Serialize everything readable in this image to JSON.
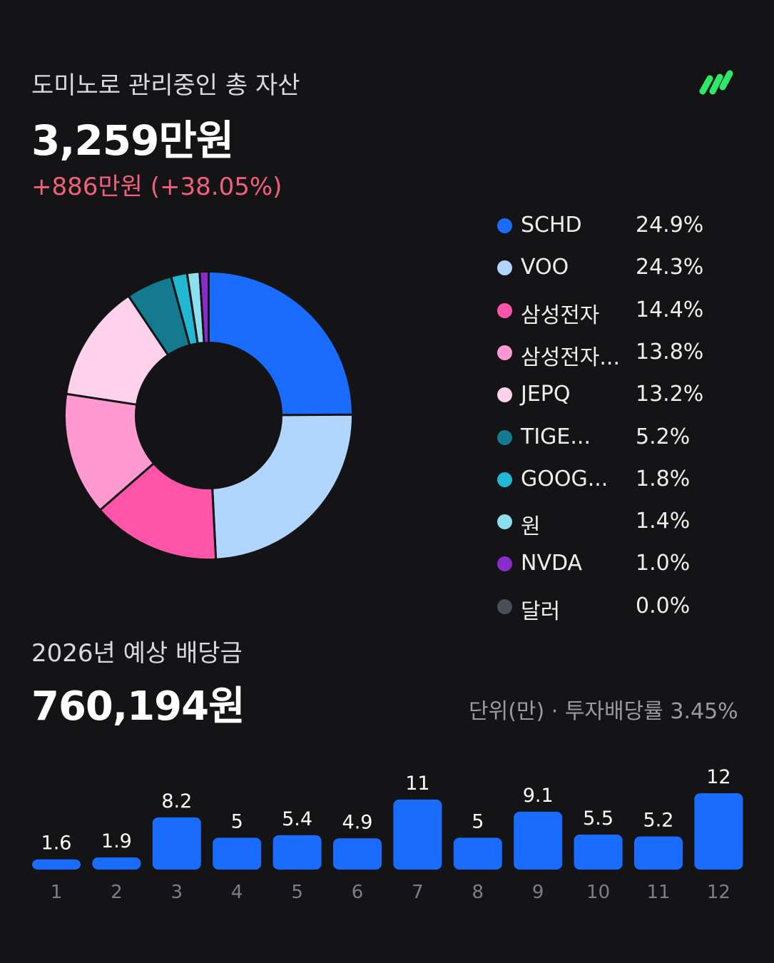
{
  "header": {
    "title": "도미노로 관리중인 총 자산",
    "total": "3,259만원",
    "change": "+886만원 (+38.05%)"
  },
  "logo": {
    "icon": "domino-stripes-logo",
    "color": "#2ee86a"
  },
  "legend": [
    {
      "name": "SCHD",
      "pct": "24.9%",
      "color": "#1a6cff"
    },
    {
      "name": "VOO",
      "pct": "24.3%",
      "color": "#b0d6ff"
    },
    {
      "name": "삼성전자",
      "pct": "14.4%",
      "color": "#ff55a8"
    },
    {
      "name": "삼성전자...",
      "pct": "13.8%",
      "color": "#ff99d2"
    },
    {
      "name": "JEPQ",
      "pct": "13.2%",
      "color": "#ffd2ec"
    },
    {
      "name": "TIGE...",
      "pct": "5.2%",
      "color": "#147a8f"
    },
    {
      "name": "GOOG...",
      "pct": "1.8%",
      "color": "#22b8d4"
    },
    {
      "name": "원",
      "pct": "1.4%",
      "color": "#8ce0ee"
    },
    {
      "name": "NVDA",
      "pct": "1.0%",
      "color": "#8a2cc9"
    },
    {
      "name": "달러",
      "pct": "0.0%",
      "color": "#4a4f57"
    }
  ],
  "dividend": {
    "title": "2026년 예상 배당금",
    "total": "760,194원",
    "subtitle": "단위(만) · 투자배당률 3.45%"
  },
  "chart_data": [
    {
      "type": "pie",
      "labels": [
        "SCHD",
        "VOO",
        "삼성전자",
        "삼성전자...",
        "JEPQ",
        "TIGE...",
        "GOOG...",
        "원",
        "NVDA",
        "달러"
      ],
      "values": [
        24.9,
        24.3,
        14.4,
        13.8,
        13.2,
        5.2,
        1.8,
        1.4,
        1.0,
        0.0
      ],
      "colors": [
        "#1a6cff",
        "#b0d6ff",
        "#ff55a8",
        "#ff99d2",
        "#ffd2ec",
        "#147a8f",
        "#22b8d4",
        "#8ce0ee",
        "#8a2cc9",
        "#4a4f57"
      ],
      "donut": true
    },
    {
      "type": "bar",
      "categories": [
        "1",
        "2",
        "3",
        "4",
        "5",
        "6",
        "7",
        "8",
        "9",
        "10",
        "11",
        "12"
      ],
      "values": [
        1.6,
        1.9,
        8.2,
        5,
        5.4,
        4.9,
        11,
        5,
        9.1,
        5.5,
        5.2,
        12
      ],
      "labels": [
        "1.6",
        "1.9",
        "8.2",
        "5",
        "5.4",
        "4.9",
        "11",
        "5",
        "9.1",
        "5.5",
        "5.2",
        "12"
      ],
      "color": "#1a6cff"
    }
  ]
}
